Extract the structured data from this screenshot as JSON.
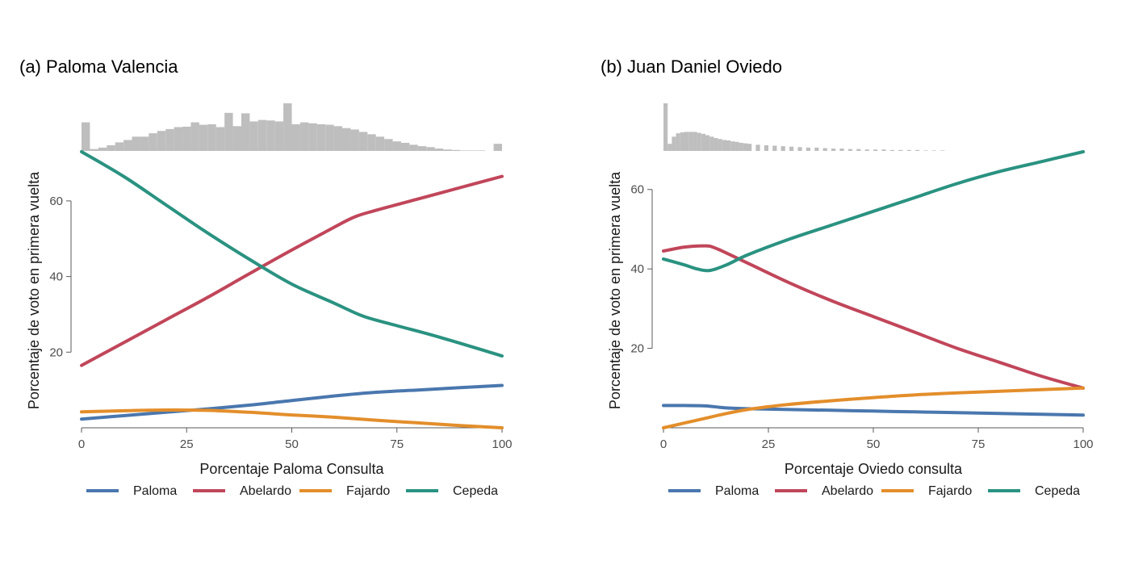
{
  "chart_data": [
    {
      "type": "line",
      "title": "(a) Paloma Valencia",
      "xlabel": "Porcentaje Paloma Consulta",
      "ylabel": "Porcentaje de voto en primera vuelta",
      "xlim": [
        0,
        100
      ],
      "ylim": [
        0,
        73
      ],
      "xticks": [
        "0",
        "25",
        "50",
        "75",
        "100"
      ],
      "yticks": [
        "20",
        "40",
        "60"
      ],
      "grid": false,
      "legend_position": "bottom",
      "series": [
        {
          "name": "Paloma",
          "color": "#4a77ae",
          "x": [
            0,
            10,
            20,
            30,
            40,
            50,
            60,
            70,
            80,
            90,
            100
          ],
          "y": [
            2.3,
            3.2,
            4.1,
            5.0,
            6.0,
            7.2,
            8.4,
            9.4,
            10.0,
            10.6,
            11.2
          ]
        },
        {
          "name": "Abelardo",
          "color": "#c1465a",
          "x": [
            0,
            10,
            20,
            30,
            40,
            50,
            60,
            65,
            70,
            80,
            90,
            100
          ],
          "y": [
            16.5,
            22.5,
            28.5,
            34.5,
            40.8,
            47.0,
            53.0,
            55.8,
            57.5,
            60.5,
            63.5,
            66.5
          ]
        },
        {
          "name": "Fajardo",
          "color": "#e38e2b",
          "x": [
            0,
            10,
            20,
            30,
            40,
            50,
            60,
            70,
            80,
            90,
            100
          ],
          "y": [
            4.2,
            4.5,
            4.7,
            4.6,
            4.1,
            3.4,
            2.8,
            2.0,
            1.3,
            0.6,
            0.0
          ]
        },
        {
          "name": "Cepeda",
          "color": "#2a9281",
          "x": [
            0,
            10,
            20,
            30,
            40,
            50,
            60,
            67,
            75,
            85,
            100
          ],
          "y": [
            73.0,
            66.5,
            59.0,
            51.5,
            44.5,
            38.0,
            33.0,
            29.5,
            27.0,
            24.0,
            19.0
          ]
        }
      ],
      "histogram": {
        "color": "#bebebe",
        "bin_width": 2,
        "bin_starts": [
          0,
          2,
          4,
          6,
          8,
          10,
          12,
          14,
          16,
          18,
          20,
          22,
          24,
          26,
          28,
          30,
          32,
          34,
          36,
          38,
          40,
          42,
          44,
          46,
          48,
          50,
          52,
          54,
          56,
          58,
          60,
          62,
          64,
          66,
          68,
          70,
          72,
          74,
          76,
          78,
          80,
          82,
          84,
          86,
          88,
          90,
          92,
          94,
          96,
          98
        ],
        "heights": [
          0.6,
          0.04,
          0.07,
          0.12,
          0.18,
          0.23,
          0.3,
          0.3,
          0.37,
          0.42,
          0.46,
          0.5,
          0.51,
          0.6,
          0.55,
          0.56,
          0.5,
          0.8,
          0.52,
          0.79,
          0.62,
          0.65,
          0.64,
          0.62,
          1.0,
          0.56,
          0.6,
          0.58,
          0.56,
          0.55,
          0.52,
          0.48,
          0.45,
          0.4,
          0.35,
          0.3,
          0.25,
          0.2,
          0.17,
          0.13,
          0.1,
          0.08,
          0.05,
          0.03,
          0.02,
          0.01,
          0.01,
          0.01,
          0.0,
          0.15
        ]
      }
    },
    {
      "type": "line",
      "title": "(b) Juan Daniel Oviedo",
      "xlabel": "Porcentaje Oviedo consulta",
      "ylabel": "Porcentaje de voto en primera vuelta",
      "xlim": [
        0,
        100
      ],
      "ylim": [
        0,
        69.5
      ],
      "xticks": [
        "0",
        "25",
        "50",
        "75",
        "100"
      ],
      "yticks": [
        "20",
        "40",
        "60"
      ],
      "grid": false,
      "legend_position": "bottom",
      "series": [
        {
          "name": "Paloma",
          "color": "#4a77ae",
          "x": [
            0,
            5,
            10,
            15,
            20,
            30,
            40,
            50,
            60,
            70,
            80,
            90,
            100
          ],
          "y": [
            5.6,
            5.6,
            5.5,
            5.0,
            4.8,
            4.6,
            4.4,
            4.2,
            4.0,
            3.8,
            3.6,
            3.4,
            3.2
          ]
        },
        {
          "name": "Abelardo",
          "color": "#c1465a",
          "x": [
            0,
            5,
            10,
            12,
            15,
            20,
            30,
            40,
            50,
            60,
            70,
            80,
            90,
            100
          ],
          "y": [
            44.5,
            45.5,
            45.8,
            45.4,
            44.0,
            41.5,
            36.5,
            32.0,
            28.0,
            24.0,
            20.0,
            16.5,
            13.0,
            10.0
          ]
        },
        {
          "name": "Fajardo",
          "color": "#e38e2b",
          "x": [
            0,
            5,
            10,
            15,
            20,
            25,
            30,
            40,
            50,
            60,
            70,
            80,
            90,
            100
          ],
          "y": [
            0.0,
            1.2,
            2.4,
            3.6,
            4.6,
            5.3,
            5.9,
            6.8,
            7.6,
            8.3,
            8.8,
            9.2,
            9.6,
            10.0
          ]
        },
        {
          "name": "Cepeda",
          "color": "#2a9281",
          "x": [
            0,
            5,
            8,
            11,
            15,
            20,
            30,
            40,
            50,
            60,
            70,
            80,
            90,
            100
          ],
          "y": [
            42.5,
            41.0,
            40.0,
            39.6,
            41.0,
            43.5,
            47.5,
            51.0,
            54.5,
            58.0,
            61.5,
            64.5,
            67.0,
            69.5
          ]
        }
      ],
      "histogram": {
        "color": "#bebebe",
        "bin_width": 1,
        "bin_starts": [
          0,
          1,
          2,
          3,
          4,
          5,
          6,
          7,
          8,
          9,
          10,
          11,
          12,
          13,
          14,
          15,
          16,
          17,
          18,
          19,
          20,
          22,
          24,
          26,
          28,
          30,
          32,
          34,
          36,
          38,
          40,
          42,
          44,
          46,
          48,
          50,
          52,
          54,
          56,
          58,
          60,
          62,
          64,
          66
        ],
        "heights": [
          1.0,
          0.15,
          0.3,
          0.37,
          0.39,
          0.4,
          0.4,
          0.4,
          0.38,
          0.36,
          0.33,
          0.3,
          0.27,
          0.25,
          0.23,
          0.22,
          0.2,
          0.19,
          0.17,
          0.16,
          0.15,
          0.13,
          0.12,
          0.11,
          0.1,
          0.09,
          0.08,
          0.07,
          0.07,
          0.06,
          0.05,
          0.05,
          0.04,
          0.04,
          0.03,
          0.03,
          0.03,
          0.02,
          0.02,
          0.02,
          0.02,
          0.01,
          0.01,
          0.01
        ]
      }
    }
  ]
}
